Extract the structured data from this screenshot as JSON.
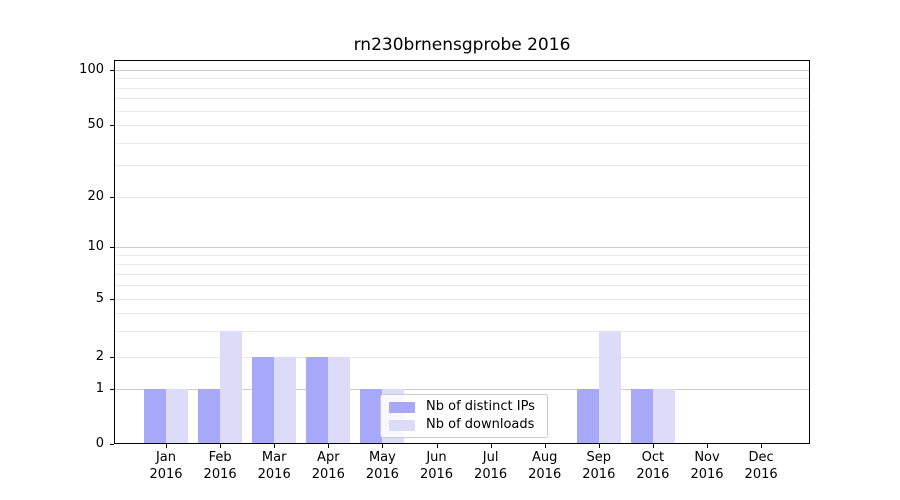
{
  "chart_data": {
    "type": "bar",
    "title": "rn230brnensgprobe 2016",
    "year": "2016",
    "months": [
      "Jan",
      "Feb",
      "Mar",
      "Apr",
      "May",
      "Jun",
      "Jul",
      "Aug",
      "Sep",
      "Oct",
      "Nov",
      "Dec"
    ],
    "categories": [
      "Jan 2016",
      "Feb 2016",
      "Mar 2016",
      "Apr 2016",
      "May 2016",
      "Jun 2016",
      "Jul 2016",
      "Aug 2016",
      "Sep 2016",
      "Oct 2016",
      "Nov 2016",
      "Dec 2016"
    ],
    "series": [
      {
        "name": "Nb of distinct IPs",
        "color": "#a8a8f8",
        "values": [
          1,
          1,
          2,
          2,
          1,
          0,
          0,
          0,
          1,
          1,
          0,
          0
        ]
      },
      {
        "name": "Nb of downloads",
        "color": "#dcdcf8",
        "values": [
          1,
          3,
          2,
          2,
          1,
          0,
          0,
          0,
          3,
          1,
          0,
          0
        ]
      }
    ],
    "yscale": "log (0 at baseline)",
    "yticks": [
      0,
      1,
      2,
      5,
      10,
      20,
      50,
      100
    ],
    "ylim": [
      0,
      110
    ],
    "grid": "horizontal major and minor gridlines",
    "legend_position": "lower center",
    "colors": {
      "major_grid": "#cdcdcd",
      "minor_grid": "#eaeaea",
      "axis": "#000000",
      "background": "#ffffff"
    }
  }
}
